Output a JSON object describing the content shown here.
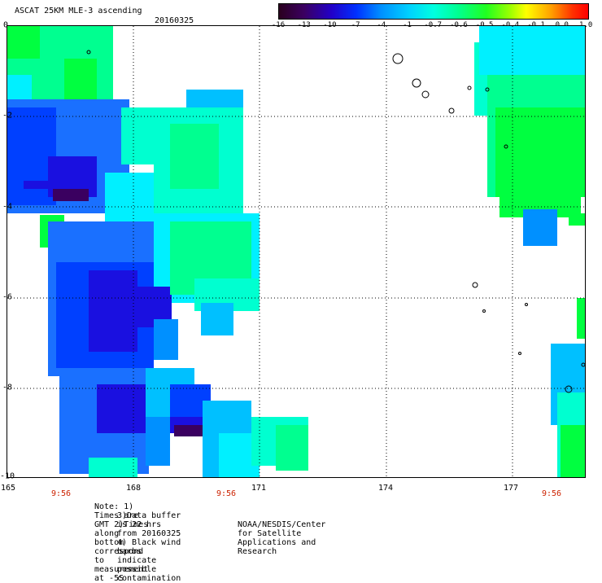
{
  "header": {
    "title": "ASCAT 25KM MLE-3 ascending",
    "date": "20160325"
  },
  "colorbar": {
    "tick_labels": [
      "-16",
      "-13",
      "-10",
      "-7",
      "-4",
      "-1",
      "-0.7",
      "-0.6",
      "-0.5",
      "-0.4",
      "-0.1",
      "0.0",
      "1.0"
    ]
  },
  "axes": {
    "y_labels": [
      "0",
      "-2",
      "-4",
      "-6",
      "-8",
      "-10"
    ],
    "x_labels": [
      "165",
      "168",
      "171",
      "174",
      "177"
    ],
    "time_labels": [
      "9:56",
      "9:56",
      "9:56"
    ]
  },
  "notes": {
    "line1": "Note: 1) Times are GMT 2)Times along bottom correspond to measurement at -5S",
    "line2": "3)Data buffer is 22 hrs from 20160325 4) Black wind barbs indicate possible contamination",
    "line3": "NOAA/NESDIS/Center for Satellite Applications and Research"
  },
  "colors": {
    "dark_purple": "#3a0060",
    "deep_blue": "#1a10e0",
    "blue": "#0040ff",
    "mid_blue": "#1a70ff",
    "azure": "#0090ff",
    "sky": "#00c0ff",
    "cyan": "#00f0ff",
    "aqua": "#00ffd0",
    "mint": "#00ff90",
    "green": "#00ff40"
  }
}
